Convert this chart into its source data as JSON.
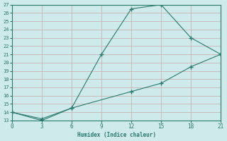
{
  "xlabel": "Humidex (Indice chaleur)",
  "line1_x": [
    0,
    3,
    6,
    9,
    12,
    15,
    18,
    21
  ],
  "line1_y": [
    14,
    13,
    14.5,
    21,
    26.5,
    27,
    23,
    21
  ],
  "line2_x": [
    0,
    3,
    6,
    12,
    15,
    18,
    21
  ],
  "line2_y": [
    14,
    13.2,
    14.5,
    16.5,
    17.5,
    19.5,
    21
  ],
  "line_color": "#2a7a6e",
  "bg_color": "#ceeaea",
  "grid_color": "#b8d8d8",
  "ylim": [
    13,
    27
  ],
  "xlim": [
    0,
    21
  ],
  "yticks": [
    13,
    14,
    15,
    16,
    17,
    18,
    19,
    20,
    21,
    22,
    23,
    24,
    25,
    26,
    27
  ],
  "xticks": [
    0,
    3,
    6,
    9,
    12,
    15,
    18,
    21
  ]
}
